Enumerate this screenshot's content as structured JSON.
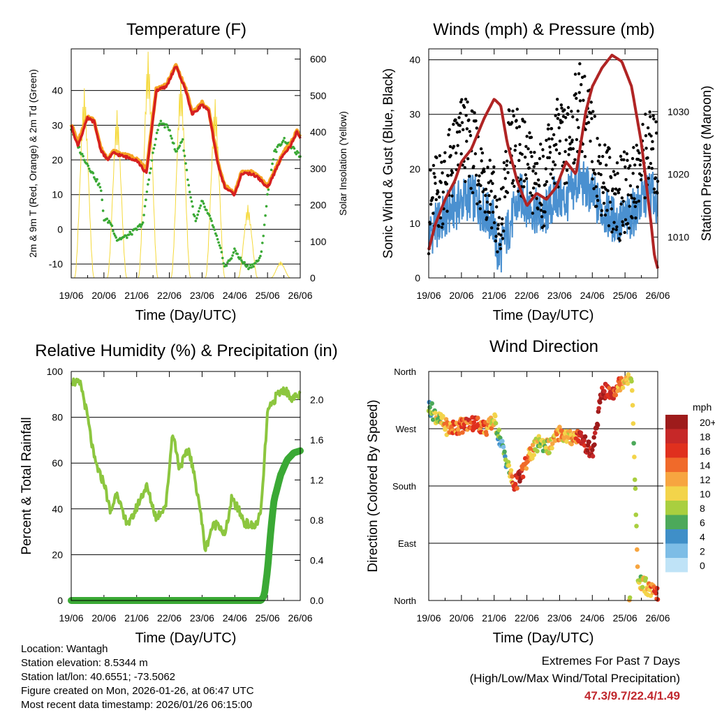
{
  "chart_data": [
    {
      "type": "line",
      "title": "Temperature (F)",
      "xlabel": "Time (Day/UTC)",
      "ylabel_left": "2m & 9m T (Red, Orange) & 2m Td (Green)",
      "ylabel_right": "Solar Insolation (Yellow)",
      "x_ticks": [
        "19/06",
        "20/06",
        "21/06",
        "22/06",
        "23/06",
        "24/06",
        "25/06",
        "26/06"
      ],
      "ylim_left": [
        -14,
        52
      ],
      "ylim_right": [
        0,
        628
      ],
      "y_ticks_left": [
        -10,
        0,
        10,
        20,
        30,
        40
      ],
      "y_ticks_right": [
        0,
        100,
        200,
        300,
        400,
        500,
        600
      ],
      "series": [
        {
          "name": "2m T",
          "color": "#d62020",
          "x": [
            0,
            0.2,
            0.5,
            0.7,
            0.9,
            1.1,
            1.3,
            1.6,
            2.0,
            2.3,
            2.6,
            2.9,
            3.2,
            3.5,
            3.7,
            4.0,
            4.2,
            4.5,
            4.7,
            5.0,
            5.2,
            5.5,
            5.7,
            5.9,
            6.0,
            6.2,
            6.4,
            6.5,
            6.7,
            6.9,
            7.0
          ],
          "values": [
            30,
            24,
            32,
            31,
            23,
            20,
            22,
            21,
            20,
            16,
            40,
            41,
            47,
            40,
            33,
            36,
            34,
            18,
            12,
            10,
            16,
            16,
            15,
            13,
            12,
            16,
            20,
            22,
            24,
            28,
            26
          ]
        },
        {
          "name": "9m T",
          "color": "#f6a323",
          "x": [
            0,
            0.2,
            0.5,
            0.7,
            0.9,
            1.1,
            1.3,
            1.6,
            2.0,
            2.3,
            2.6,
            2.9,
            3.2,
            3.5,
            3.7,
            4.0,
            4.2,
            4.5,
            4.7,
            5.0,
            5.2,
            5.5,
            5.7,
            5.9,
            6.0,
            6.2,
            6.4,
            6.5,
            6.7,
            6.9,
            7.0
          ],
          "values": [
            30.5,
            25,
            32.5,
            31.5,
            23.5,
            20.5,
            22.5,
            21.5,
            20.5,
            17,
            40.5,
            41.5,
            47.3,
            40.5,
            33.5,
            36.5,
            34.5,
            18.5,
            12.5,
            10.5,
            16.5,
            16.5,
            15.5,
            13.5,
            12.5,
            16.5,
            20.5,
            22.5,
            24.5,
            28.5,
            26.5
          ]
        },
        {
          "name": "2m Td",
          "color": "#3aa935",
          "x": [
            0,
            0.3,
            0.6,
            0.9,
            1.0,
            1.2,
            1.4,
            1.7,
            2.0,
            2.2,
            2.3,
            2.5,
            2.7,
            3.0,
            3.2,
            3.4,
            3.6,
            3.8,
            4.0,
            4.3,
            4.6,
            4.7,
            4.9,
            5.0,
            5.2,
            5.4,
            5.6,
            5.8,
            6.0,
            6.2,
            6.5,
            7.0
          ],
          "values": [
            29,
            22,
            17,
            12,
            3,
            2,
            -3,
            -2,
            0,
            2,
            10,
            22,
            31,
            29,
            22,
            26,
            12,
            2,
            8,
            2,
            -7,
            -11,
            -8,
            -6,
            -9,
            -11,
            -10,
            -8,
            10,
            22,
            26,
            21
          ]
        },
        {
          "name": "Solar Insolation",
          "color": "#f5d93a",
          "axis": "right",
          "peaks": [
            [
              0.4,
              520
            ],
            [
              1.4,
              460
            ],
            [
              2.35,
              620
            ],
            [
              3.35,
              560
            ],
            [
              4.4,
              490
            ],
            [
              5.4,
              200
            ],
            [
              6.4,
              45
            ]
          ]
        }
      ]
    },
    {
      "type": "scatter",
      "title": "Winds (mph) & Pressure (mb)",
      "xlabel": "Time (Day/UTC)",
      "ylabel_left": "Sonic Wind & Gust (Blue, Black)",
      "ylabel_right": "Station Pressure (Maroon)",
      "x_ticks": [
        "19/06",
        "20/06",
        "21/06",
        "22/06",
        "23/06",
        "24/06",
        "25/06",
        "26/06"
      ],
      "ylim_left": [
        0,
        42
      ],
      "ylim_right": [
        1003.5,
        1040
      ],
      "y_ticks_left": [
        0,
        10,
        20,
        30,
        40
      ],
      "y_ticks_right": [
        1010,
        1020,
        1030
      ],
      "series": [
        {
          "name": "Sonic Wind",
          "color": "#4a90d0",
          "x": [
            0,
            0.3,
            0.6,
            1.0,
            1.3,
            1.6,
            2.0,
            2.1,
            2.2,
            2.5,
            2.8,
            3.1,
            3.5,
            3.9,
            4.2,
            4.6,
            4.9,
            5.1,
            5.4,
            5.8,
            6.1,
            6.4,
            6.7,
            7.0
          ],
          "values": [
            8,
            10,
            12,
            14,
            15,
            13,
            10,
            4,
            5,
            10,
            15,
            13,
            11,
            15,
            14,
            18,
            16,
            14,
            12,
            10,
            11,
            13,
            16,
            14
          ]
        },
        {
          "name": "Gust",
          "color": "#000000",
          "x": [
            0,
            0.3,
            0.6,
            1.0,
            1.3,
            1.6,
            2.0,
            2.1,
            2.2,
            2.5,
            2.8,
            3.1,
            3.5,
            3.9,
            4.2,
            4.6,
            4.9,
            5.1,
            5.4,
            5.8,
            6.1,
            6.4,
            6.7,
            7.0
          ],
          "values": [
            12,
            16,
            19,
            26,
            24,
            19,
            16,
            6,
            9,
            26,
            22,
            19,
            17,
            25,
            23,
            32,
            28,
            21,
            18,
            14,
            16,
            19,
            24,
            21
          ]
        },
        {
          "name": "Station Pressure",
          "color": "#b02424",
          "axis": "right",
          "x": [
            0,
            0.2,
            0.5,
            0.8,
            1.0,
            1.3,
            1.7,
            2.0,
            2.2,
            2.4,
            2.7,
            3.0,
            3.3,
            3.6,
            3.9,
            4.2,
            4.5,
            4.8,
            5.0,
            5.3,
            5.6,
            5.9,
            6.2,
            6.5,
            6.8,
            6.9,
            7.0
          ],
          "values": [
            1008,
            1012,
            1016,
            1019,
            1022,
            1024,
            1029,
            1032,
            1031,
            1025,
            1019,
            1015,
            1017,
            1016,
            1018,
            1022,
            1020,
            1030,
            1034,
            1037,
            1039,
            1038,
            1034,
            1025,
            1012,
            1007,
            1005
          ]
        }
      ]
    },
    {
      "type": "line",
      "title": "Relative Humidity (%) & Precipitation (in)",
      "xlabel": "Time (Day/UTC)",
      "ylabel_left": "Percent & Total Rainfall",
      "x_ticks": [
        "19/06",
        "20/06",
        "21/06",
        "22/06",
        "23/06",
        "24/06",
        "25/06",
        "26/06"
      ],
      "ylim_left": [
        0,
        100
      ],
      "ylim_right": [
        0,
        2.28
      ],
      "y_ticks_left": [
        0,
        20,
        40,
        60,
        80,
        100
      ],
      "y_ticks_right": [
        "0.0",
        "0.4",
        "0.8",
        "1.2",
        "1.6",
        "2.0"
      ],
      "series": [
        {
          "name": "Relative Humidity",
          "color": "#8cc63f",
          "x": [
            0,
            0.3,
            0.5,
            0.7,
            0.9,
            1.0,
            1.2,
            1.4,
            1.6,
            1.8,
            2.1,
            2.3,
            2.6,
            2.9,
            3.1,
            3.3,
            3.6,
            3.9,
            4.1,
            4.3,
            4.5,
            4.7,
            4.9,
            5.1,
            5.3,
            5.6,
            5.8,
            6.0,
            6.3,
            6.5,
            6.8,
            7.0
          ],
          "values": [
            96,
            94,
            80,
            62,
            54,
            52,
            38,
            48,
            36,
            34,
            44,
            50,
            36,
            42,
            74,
            58,
            66,
            44,
            22,
            32,
            34,
            28,
            44,
            40,
            34,
            32,
            38,
            82,
            90,
            92,
            88,
            90
          ]
        },
        {
          "name": "Total Precipitation",
          "color": "#3aa935",
          "axis": "right",
          "x": [
            0,
            5.8,
            5.9,
            6.0,
            6.1,
            6.2,
            6.4,
            6.6,
            6.8,
            7.0
          ],
          "values": [
            0,
            0,
            0.05,
            0.3,
            0.7,
            1.0,
            1.25,
            1.4,
            1.47,
            1.49
          ]
        }
      ]
    },
    {
      "type": "scatter",
      "title": "Wind Direction",
      "xlabel": "Time (Day/UTC)",
      "ylabel_left": "Direction (Colored By Speed)",
      "x_ticks": [
        "19/06",
        "20/06",
        "21/06",
        "22/06",
        "23/06",
        "24/06",
        "25/06",
        "26/06"
      ],
      "y_ticks_left": [
        "North",
        "East",
        "South",
        "West",
        "North"
      ],
      "ylim": [
        0,
        360
      ],
      "legend_title": "mph",
      "legend_labels": [
        "20+",
        "18",
        "16",
        "14",
        "12",
        "10",
        "8",
        "6",
        "4",
        "2",
        "0"
      ],
      "legend_colors": [
        "#9e1b1b",
        "#c62828",
        "#e0301e",
        "#f06a2a",
        "#f7a540",
        "#f3d44a",
        "#a9cf3f",
        "#4ca95a",
        "#3f8fc8",
        "#7dbde6",
        "#bfe3f7"
      ],
      "series": [
        {
          "name": "Direction",
          "x": [
            0,
            0.3,
            0.6,
            1.0,
            1.4,
            1.8,
            2.0,
            2.2,
            2.4,
            2.6,
            2.8,
            3.1,
            3.4,
            3.7,
            4.0,
            4.3,
            4.6,
            5.0,
            5.3,
            5.6,
            5.9,
            6.2,
            6.4,
            6.6,
            6.8,
            7.0
          ],
          "values": [
            305,
            285,
            270,
            275,
            280,
            270,
            285,
            250,
            215,
            180,
            195,
            230,
            250,
            240,
            265,
            255,
            260,
            230,
            330,
            325,
            345,
            355,
            30,
            25,
            15,
            10
          ],
          "speeds": [
            6,
            9,
            12,
            14,
            16,
            12,
            10,
            4,
            6,
            16,
            18,
            12,
            8,
            10,
            12,
            9,
            16,
            20,
            18,
            16,
            12,
            8,
            10,
            8,
            14,
            16
          ]
        }
      ]
    }
  ],
  "info": {
    "location": "Location: Wantagh",
    "elevation": "Station elevation: 8.5344 m",
    "latlon": "Station lat/lon: 40.6551; -73.5062",
    "created": "Figure created on Mon, 2026-01-26, at 06:47 UTC",
    "timestamp": "Most recent data timestamp: 2026/01/26 06:15:00"
  },
  "extremes": {
    "line1": "Extremes For Past 7 Days",
    "line2": "(High/Low/Max Wind/Total Precipitation)",
    "values": "47.3/9.7/22.4/1.49"
  }
}
